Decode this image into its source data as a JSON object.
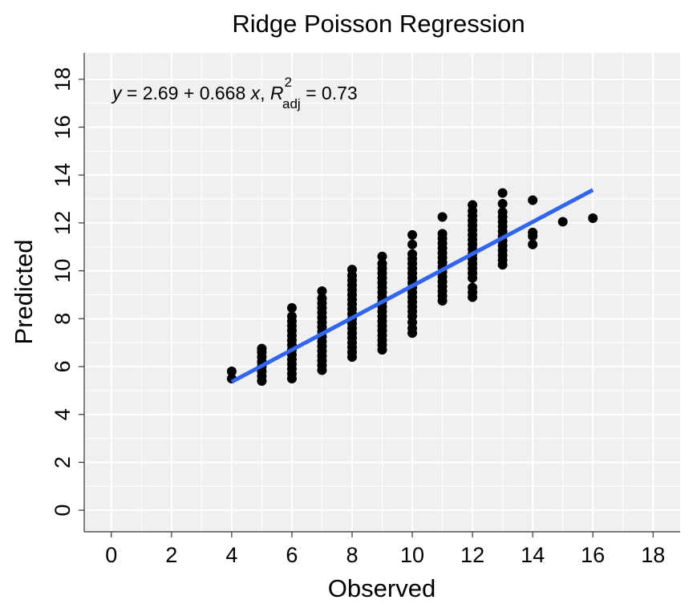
{
  "chart_data": {
    "type": "scatter",
    "title": "Ridge Poisson Regression",
    "xlabel": "Observed",
    "ylabel": "Predicted",
    "xlim": [
      -0.9,
      18.9
    ],
    "ylim": [
      -0.9,
      19.1
    ],
    "x_ticks": [
      0,
      2,
      4,
      6,
      8,
      10,
      12,
      14,
      16,
      18
    ],
    "y_ticks": [
      0,
      2,
      4,
      6,
      8,
      10,
      12,
      14,
      16,
      18
    ],
    "grid": true,
    "background": "#f0f0f0",
    "point_color": "#000000",
    "line_color": "#3366ee",
    "annotation": {
      "y_var": "y",
      "equals": " = 2.69 + 0.668 ",
      "x_var": "x",
      "comma": ", ",
      "r_symbol": "R",
      "r_superscript": "2",
      "r_subscript": "adj",
      "r_value": " = 0.73"
    },
    "fit_line": {
      "intercept": 2.69,
      "slope": 0.668,
      "x_range": [
        4,
        16
      ]
    },
    "series": [
      {
        "points": [
          [
            4,
            5.5
          ],
          [
            4,
            5.8
          ],
          [
            5,
            5.4
          ],
          [
            5,
            5.6
          ],
          [
            5,
            5.8
          ],
          [
            5,
            6.0
          ],
          [
            5,
            6.2
          ],
          [
            5,
            6.4
          ],
          [
            5,
            6.6
          ],
          [
            5,
            6.75
          ],
          [
            6,
            5.5
          ],
          [
            6,
            5.7
          ],
          [
            6,
            5.9
          ],
          [
            6,
            6.1
          ],
          [
            6,
            6.3
          ],
          [
            6,
            6.5
          ],
          [
            6,
            6.7
          ],
          [
            6,
            6.9
          ],
          [
            6,
            7.1
          ],
          [
            6,
            7.3
          ],
          [
            6,
            7.5
          ],
          [
            6,
            7.7
          ],
          [
            6,
            7.9
          ],
          [
            6,
            8.1
          ],
          [
            6,
            8.45
          ],
          [
            7,
            5.85
          ],
          [
            7,
            6.05
          ],
          [
            7,
            6.25
          ],
          [
            7,
            6.45
          ],
          [
            7,
            6.65
          ],
          [
            7,
            6.85
          ],
          [
            7,
            7.05
          ],
          [
            7,
            7.25
          ],
          [
            7,
            7.45
          ],
          [
            7,
            7.65
          ],
          [
            7,
            7.85
          ],
          [
            7,
            8.05
          ],
          [
            7,
            8.25
          ],
          [
            7,
            8.45
          ],
          [
            7,
            8.65
          ],
          [
            7,
            8.85
          ],
          [
            7,
            9.15
          ],
          [
            8,
            6.4
          ],
          [
            8,
            6.6
          ],
          [
            8,
            6.8
          ],
          [
            8,
            7.0
          ],
          [
            8,
            7.2
          ],
          [
            8,
            7.4
          ],
          [
            8,
            7.6
          ],
          [
            8,
            7.8
          ],
          [
            8,
            8.0
          ],
          [
            8,
            8.2
          ],
          [
            8,
            8.4
          ],
          [
            8,
            8.6
          ],
          [
            8,
            8.8
          ],
          [
            8,
            9.0
          ],
          [
            8,
            9.2
          ],
          [
            8,
            9.4
          ],
          [
            8,
            9.6
          ],
          [
            8,
            9.8
          ],
          [
            8,
            10.05
          ],
          [
            9,
            6.7
          ],
          [
            9,
            6.9
          ],
          [
            9,
            7.1
          ],
          [
            9,
            7.3
          ],
          [
            9,
            7.5
          ],
          [
            9,
            7.7
          ],
          [
            9,
            7.9
          ],
          [
            9,
            8.1
          ],
          [
            9,
            8.3
          ],
          [
            9,
            8.5
          ],
          [
            9,
            8.7
          ],
          [
            9,
            8.9
          ],
          [
            9,
            9.1
          ],
          [
            9,
            9.3
          ],
          [
            9,
            9.5
          ],
          [
            9,
            9.7
          ],
          [
            9,
            9.9
          ],
          [
            9,
            10.1
          ],
          [
            9,
            10.3
          ],
          [
            9,
            10.6
          ],
          [
            10,
            7.4
          ],
          [
            10,
            7.6
          ],
          [
            10,
            7.85
          ],
          [
            10,
            8.1
          ],
          [
            10,
            8.3
          ],
          [
            10,
            8.5
          ],
          [
            10,
            8.7
          ],
          [
            10,
            8.9
          ],
          [
            10,
            9.1
          ],
          [
            10,
            9.3
          ],
          [
            10,
            9.5
          ],
          [
            10,
            9.7
          ],
          [
            10,
            9.9
          ],
          [
            10,
            10.1
          ],
          [
            10,
            10.3
          ],
          [
            10,
            10.5
          ],
          [
            10,
            10.7
          ],
          [
            10,
            11.1
          ],
          [
            10,
            11.5
          ],
          [
            11,
            8.75
          ],
          [
            11,
            8.95
          ],
          [
            11,
            9.15
          ],
          [
            11,
            9.35
          ],
          [
            11,
            9.55
          ],
          [
            11,
            9.75
          ],
          [
            11,
            9.95
          ],
          [
            11,
            10.15
          ],
          [
            11,
            10.35
          ],
          [
            11,
            10.55
          ],
          [
            11,
            10.75
          ],
          [
            11,
            10.95
          ],
          [
            11,
            11.15
          ],
          [
            11,
            11.35
          ],
          [
            11,
            11.55
          ],
          [
            11,
            12.25
          ],
          [
            12,
            8.9
          ],
          [
            12,
            9.1
          ],
          [
            12,
            9.3
          ],
          [
            12,
            9.7
          ],
          [
            12,
            9.9
          ],
          [
            12,
            10.1
          ],
          [
            12,
            10.3
          ],
          [
            12,
            10.5
          ],
          [
            12,
            10.7
          ],
          [
            12,
            10.9
          ],
          [
            12,
            11.1
          ],
          [
            12,
            11.3
          ],
          [
            12,
            11.5
          ],
          [
            12,
            11.7
          ],
          [
            12,
            11.9
          ],
          [
            12,
            12.1
          ],
          [
            12,
            12.3
          ],
          [
            12,
            12.5
          ],
          [
            12,
            12.75
          ],
          [
            13,
            10.25
          ],
          [
            13,
            10.45
          ],
          [
            13,
            10.65
          ],
          [
            13,
            10.85
          ],
          [
            13,
            11.05
          ],
          [
            13,
            11.25
          ],
          [
            13,
            11.45
          ],
          [
            13,
            11.65
          ],
          [
            13,
            11.85
          ],
          [
            13,
            12.05
          ],
          [
            13,
            12.25
          ],
          [
            13,
            12.45
          ],
          [
            13,
            12.8
          ],
          [
            13,
            13.25
          ],
          [
            14,
            11.1
          ],
          [
            14,
            11.45
          ],
          [
            14,
            11.6
          ],
          [
            14,
            12.95
          ],
          [
            15,
            12.05
          ],
          [
            16,
            12.2
          ]
        ]
      }
    ]
  }
}
